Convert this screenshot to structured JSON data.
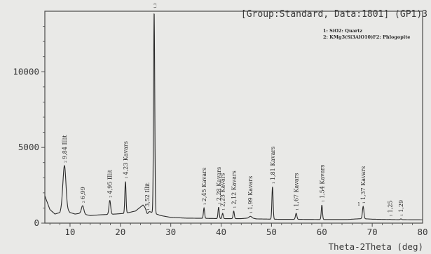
{
  "chart_data": {
    "type": "line",
    "header": "[Group:Standard, Data:1801] (GP1)3",
    "legend": [
      "1: SiO2: Quartz",
      "2: KMg3(Si3AlO10)F2: Phlogopite"
    ],
    "xlabel": "Theta-2Theta (deg)",
    "xlim": [
      5,
      80
    ],
    "ylim": [
      0,
      14000
    ],
    "x_ticks": [
      10,
      20,
      30,
      40,
      50,
      60,
      70,
      80
    ],
    "y_ticks": [
      0,
      5000,
      10000
    ],
    "x_tick_labels": [
      "10",
      "20",
      "30",
      "40",
      "50",
      "60",
      "70",
      "80"
    ],
    "y_tick_labels": [
      "0",
      "5000",
      "10000"
    ],
    "grid": false,
    "baseline": [
      [
        5,
        1800
      ],
      [
        6,
        900
      ],
      [
        7,
        600
      ],
      [
        8,
        700
      ],
      [
        8.5,
        1200
      ],
      [
        10,
        700
      ],
      [
        11,
        600
      ],
      [
        12,
        650
      ],
      [
        14,
        500
      ],
      [
        16,
        550
      ],
      [
        19,
        600
      ],
      [
        21,
        650
      ],
      [
        23,
        800
      ],
      [
        24.5,
        1200
      ],
      [
        25.5,
        800
      ],
      [
        28,
        500
      ],
      [
        30,
        380
      ],
      [
        33,
        330
      ],
      [
        36,
        320
      ],
      [
        40,
        300
      ],
      [
        44,
        300
      ],
      [
        46,
        350
      ],
      [
        47,
        280
      ],
      [
        52,
        250
      ],
      [
        56,
        250
      ],
      [
        60,
        240
      ],
      [
        65,
        240
      ],
      [
        68,
        300
      ],
      [
        70,
        260
      ],
      [
        75,
        230
      ],
      [
        80,
        220
      ]
    ],
    "peaks": [
      {
        "x": 8.9,
        "y": 3800,
        "w": 0.6,
        "label": "9,84 Illit",
        "marker": "2"
      },
      {
        "x": 12.5,
        "y": 1150,
        "w": 0.5,
        "label": "6,99",
        "marker": "2"
      },
      {
        "x": 17.9,
        "y": 1500,
        "w": 0.35,
        "label": "4,95 Illit",
        "marker": "2"
      },
      {
        "x": 21.0,
        "y": 2750,
        "w": 0.25,
        "label": "4,23 Kavars",
        "marker": "1"
      },
      {
        "x": 25.3,
        "y": 650,
        "w": 0.4,
        "label": "3,52 Illit",
        "marker": "1"
      },
      {
        "x": 26.7,
        "y": 14000,
        "w": 0.25,
        "label": "3,33 Kavars",
        "marker": "1,2"
      },
      {
        "x": 36.6,
        "y": 1000,
        "w": 0.25,
        "label": "2,45 Kavars",
        "marker": "1"
      },
      {
        "x": 39.5,
        "y": 1050,
        "w": 0.25,
        "label": "2,28 Kavars",
        "marker": "1"
      },
      {
        "x": 40.3,
        "y": 650,
        "w": 0.25,
        "label": "2,23 Kavars",
        "marker": "1"
      },
      {
        "x": 42.5,
        "y": 800,
        "w": 0.25,
        "label": "2,12 Kavars",
        "marker": "1"
      },
      {
        "x": 45.8,
        "y": 450,
        "w": 0.5,
        "label": "1,99 Kavars",
        "marker": "1"
      },
      {
        "x": 50.2,
        "y": 2400,
        "w": 0.25,
        "label": "1,81 Kavars",
        "marker": "1"
      },
      {
        "x": 54.9,
        "y": 650,
        "w": 0.3,
        "label": "1,67 Kavars",
        "marker": "1"
      },
      {
        "x": 60.0,
        "y": 1200,
        "w": 0.25,
        "label": "1,54 Kavars",
        "marker": "1"
      },
      {
        "x": 68.2,
        "y": 1100,
        "w": 0.3,
        "label": "1,37 Kavars",
        "marker": "1"
      },
      {
        "x": 73.5,
        "y": 250,
        "w": 0.3,
        "label": "1,25",
        "marker": "1"
      },
      {
        "x": 75.7,
        "y": 280,
        "w": 0.3,
        "label": "1,29",
        "marker": "1"
      }
    ],
    "extra_markers": [
      {
        "x": 67.5,
        "y": 1150,
        "marker": "1"
      }
    ],
    "colors": {
      "line": "#2b2b2b",
      "axis": "#4a4a4a",
      "background": "#e9e9e7",
      "header": "#555555"
    }
  }
}
